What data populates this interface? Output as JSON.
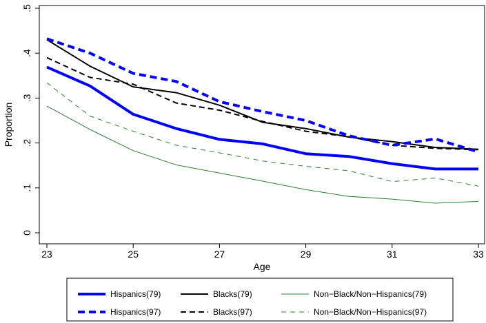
{
  "chart_data": {
    "type": "line",
    "title": "",
    "xlabel": "Age",
    "ylabel": "Proportion",
    "xlim": [
      23,
      33
    ],
    "ylim": [
      0,
      0.5
    ],
    "x_ticks": [
      23,
      25,
      27,
      29,
      31,
      33
    ],
    "x_tick_labels": [
      "23",
      "25",
      "27",
      "29",
      "31",
      "33"
    ],
    "y_ticks": [
      0,
      0.1,
      0.2,
      0.3,
      0.4,
      0.5
    ],
    "y_tick_labels": [
      "0",
      ".1",
      ".2",
      ".3",
      ".4",
      ".5"
    ],
    "grid": false,
    "legend_position": "bottom",
    "x": [
      23,
      24,
      25,
      26,
      27,
      28,
      29,
      30,
      31,
      32,
      33
    ],
    "series": [
      {
        "name": "Hispanics(79)",
        "color": "#0000ff",
        "style": "solid",
        "weight": "thick",
        "values": [
          0.369,
          0.327,
          0.264,
          0.232,
          0.208,
          0.198,
          0.176,
          0.17,
          0.154,
          0.142,
          0.142
        ]
      },
      {
        "name": "Blacks(79)",
        "color": "#000000",
        "style": "solid",
        "weight": "medium",
        "values": [
          0.43,
          0.371,
          0.325,
          0.312,
          0.284,
          0.246,
          0.232,
          0.213,
          0.203,
          0.19,
          0.186
        ]
      },
      {
        "name": "Non−Black/Non−Hispanics(79)",
        "color": "#2e7d32",
        "style": "solid",
        "weight": "thin",
        "values": [
          0.282,
          0.23,
          0.183,
          0.151,
          0.133,
          0.115,
          0.096,
          0.081,
          0.075,
          0.066,
          0.07
        ]
      },
      {
        "name": "Hispanics(97)",
        "color": "#0000ff",
        "style": "dashed",
        "weight": "thick",
        "values": [
          0.432,
          0.4,
          0.355,
          0.337,
          0.292,
          0.27,
          0.25,
          0.216,
          0.195,
          0.209,
          0.18
        ]
      },
      {
        "name": "Blacks(97)",
        "color": "#000000",
        "style": "dashed",
        "weight": "medium",
        "values": [
          0.39,
          0.346,
          0.331,
          0.289,
          0.273,
          0.248,
          0.226,
          0.214,
          0.195,
          0.188,
          0.185
        ]
      },
      {
        "name": "Non−Black/Non−Hispanics(97)",
        "color": "#2e7d32",
        "style": "dashed",
        "weight": "thin",
        "values": [
          0.334,
          0.26,
          0.226,
          0.195,
          0.178,
          0.16,
          0.148,
          0.138,
          0.114,
          0.122,
          0.104
        ]
      }
    ]
  }
}
